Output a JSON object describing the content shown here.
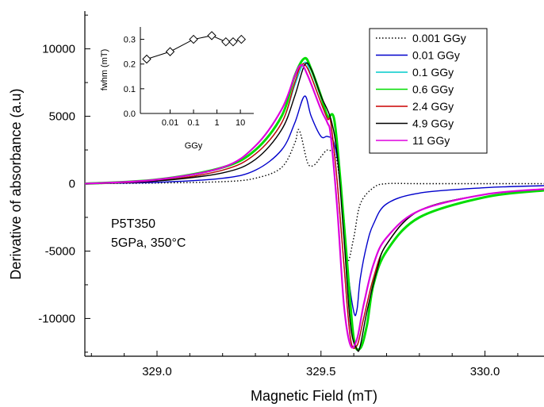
{
  "chart_data": [
    {
      "type": "line",
      "xlabel": "Magnetic Field (mT)",
      "ylabel": "Derivative of absorbance (a.u)",
      "xlim": [
        328.78,
        330.18
      ],
      "ylim": [
        -12800,
        12800
      ],
      "x_ticks": [
        329.0,
        329.5,
        330.0
      ],
      "x_tick_labels": [
        "329.0",
        "329.5",
        "330.0"
      ],
      "y_ticks": [
        10000,
        5000,
        0,
        -5000,
        -10000
      ],
      "y_tick_labels": [
        "10000",
        "5000",
        "0",
        "-5000",
        "-10000"
      ],
      "annotations": [
        "P5T350",
        "5GPa, 350°C"
      ],
      "legend_position": "top-right",
      "series": [
        {
          "name": "0.001 GGy",
          "color": "#000000",
          "dash": "dotted",
          "x": [
            328.78,
            329.0,
            329.2,
            329.3,
            329.38,
            329.42,
            329.43,
            329.44,
            329.46,
            329.48,
            329.5,
            329.52,
            329.54,
            329.55,
            329.57,
            329.58,
            329.6,
            329.62,
            329.66,
            329.7,
            329.8,
            330.0,
            330.18
          ],
          "y": [
            0,
            50,
            150,
            400,
            1200,
            3000,
            4000,
            3500,
            1500,
            1400,
            2000,
            2500,
            2200,
            1500,
            -2500,
            -5800,
            -4000,
            -1500,
            -300,
            0,
            0,
            0,
            0
          ]
        },
        {
          "name": "0.01 GGy",
          "color": "#0000cc",
          "dash": "solid",
          "x": [
            328.78,
            329.0,
            329.2,
            329.3,
            329.38,
            329.42,
            329.45,
            329.47,
            329.5,
            329.52,
            329.54,
            329.56,
            329.58,
            329.6,
            329.61,
            329.62,
            329.64,
            329.66,
            329.7,
            329.8,
            330.0,
            330.18
          ],
          "y": [
            0,
            100,
            400,
            1000,
            2500,
            4500,
            6500,
            5000,
            3500,
            3500,
            3000,
            0,
            -6000,
            -9500,
            -9300,
            -7000,
            -4500,
            -3000,
            -1500,
            -700,
            -300,
            -150
          ]
        },
        {
          "name": "0.1 GGy",
          "color": "#00cccc",
          "dash": "solid",
          "x": [
            328.78,
            329.0,
            329.2,
            329.3,
            329.38,
            329.42,
            329.45,
            329.47,
            329.5,
            329.52,
            329.53,
            329.55,
            329.57,
            329.59,
            329.61,
            329.63,
            329.66,
            329.7,
            329.8,
            330.0,
            330.18
          ],
          "y": [
            0,
            200,
            1000,
            2200,
            4500,
            7300,
            9000,
            8000,
            6000,
            4800,
            4500,
            0,
            -6000,
            -11500,
            -12000,
            -10000,
            -7000,
            -4500,
            -2000,
            -800,
            -400
          ]
        },
        {
          "name": "0.6 GGy",
          "color": "#00dd00",
          "dash": "solid",
          "x": [
            328.78,
            329.0,
            329.2,
            329.3,
            329.38,
            329.42,
            329.45,
            329.47,
            329.5,
            329.52,
            329.54,
            329.56,
            329.58,
            329.6,
            329.62,
            329.64,
            329.66,
            329.7,
            329.8,
            330.0,
            330.18
          ],
          "y": [
            0,
            300,
            1200,
            2500,
            5000,
            8000,
            9300,
            8500,
            6500,
            5000,
            4800,
            0,
            -6000,
            -11500,
            -12200,
            -10500,
            -7500,
            -5000,
            -2500,
            -1000,
            -500
          ]
        },
        {
          "name": "2.4 GGy",
          "color": "#cc0000",
          "dash": "solid",
          "x": [
            328.78,
            329.0,
            329.2,
            329.3,
            329.38,
            329.42,
            329.44,
            329.46,
            329.5,
            329.52,
            329.53,
            329.55,
            329.57,
            329.59,
            329.61,
            329.63,
            329.66,
            329.7,
            329.8,
            330.0,
            330.18
          ],
          "y": [
            0,
            200,
            1000,
            2200,
            4500,
            7500,
            8800,
            8500,
            6000,
            4800,
            4500,
            0,
            -6000,
            -11500,
            -12000,
            -10000,
            -7000,
            -4500,
            -2000,
            -800,
            -400
          ]
        },
        {
          "name": "4.9 GGy",
          "color": "#000000",
          "dash": "solid",
          "x": [
            328.78,
            329.0,
            329.2,
            329.3,
            329.38,
            329.42,
            329.45,
            329.47,
            329.5,
            329.53,
            329.55,
            329.57,
            329.59,
            329.61,
            329.62,
            329.64,
            329.67,
            329.7,
            329.8,
            330.0,
            330.18
          ],
          "y": [
            0,
            200,
            800,
            1800,
            4000,
            6500,
            8800,
            8500,
            6500,
            4800,
            2000,
            -4000,
            -10500,
            -12300,
            -12000,
            -9500,
            -6500,
            -4500,
            -2000,
            -800,
            -400
          ]
        },
        {
          "name": "11 GGy",
          "color": "#dd00dd",
          "dash": "solid",
          "x": [
            328.78,
            329.0,
            329.2,
            329.3,
            329.38,
            329.42,
            329.44,
            329.46,
            329.5,
            329.52,
            329.53,
            329.55,
            329.57,
            329.59,
            329.61,
            329.63,
            329.66,
            329.7,
            329.8,
            330.0,
            330.18
          ],
          "y": [
            0,
            300,
            1200,
            2800,
            5500,
            8000,
            8800,
            8000,
            5500,
            4500,
            3500,
            -2000,
            -9000,
            -12000,
            -11500,
            -9000,
            -6000,
            -4000,
            -2000,
            -800,
            -400
          ]
        }
      ]
    },
    {
      "type": "scatter",
      "xlabel": "GGy",
      "ylabel": "fwhm (mT)",
      "x_scale": "log",
      "xlim": [
        0.001,
        20
      ],
      "ylim": [
        0.0,
        0.35
      ],
      "x_ticks": [
        0.01,
        0.1,
        1,
        10
      ],
      "x_tick_labels": [
        "0.01",
        "0.1",
        "1",
        "10"
      ],
      "y_ticks": [
        0.0,
        0.1,
        0.2,
        0.3
      ],
      "y_tick_labels": [
        "0.0",
        "0.1",
        "0.2",
        "0.3"
      ],
      "marker": "diamond",
      "connected": true,
      "x": [
        0.001,
        0.01,
        0.1,
        0.6,
        2.4,
        4.9,
        11
      ],
      "y": [
        0.22,
        0.25,
        0.3,
        0.315,
        0.29,
        0.29,
        0.3
      ]
    }
  ]
}
